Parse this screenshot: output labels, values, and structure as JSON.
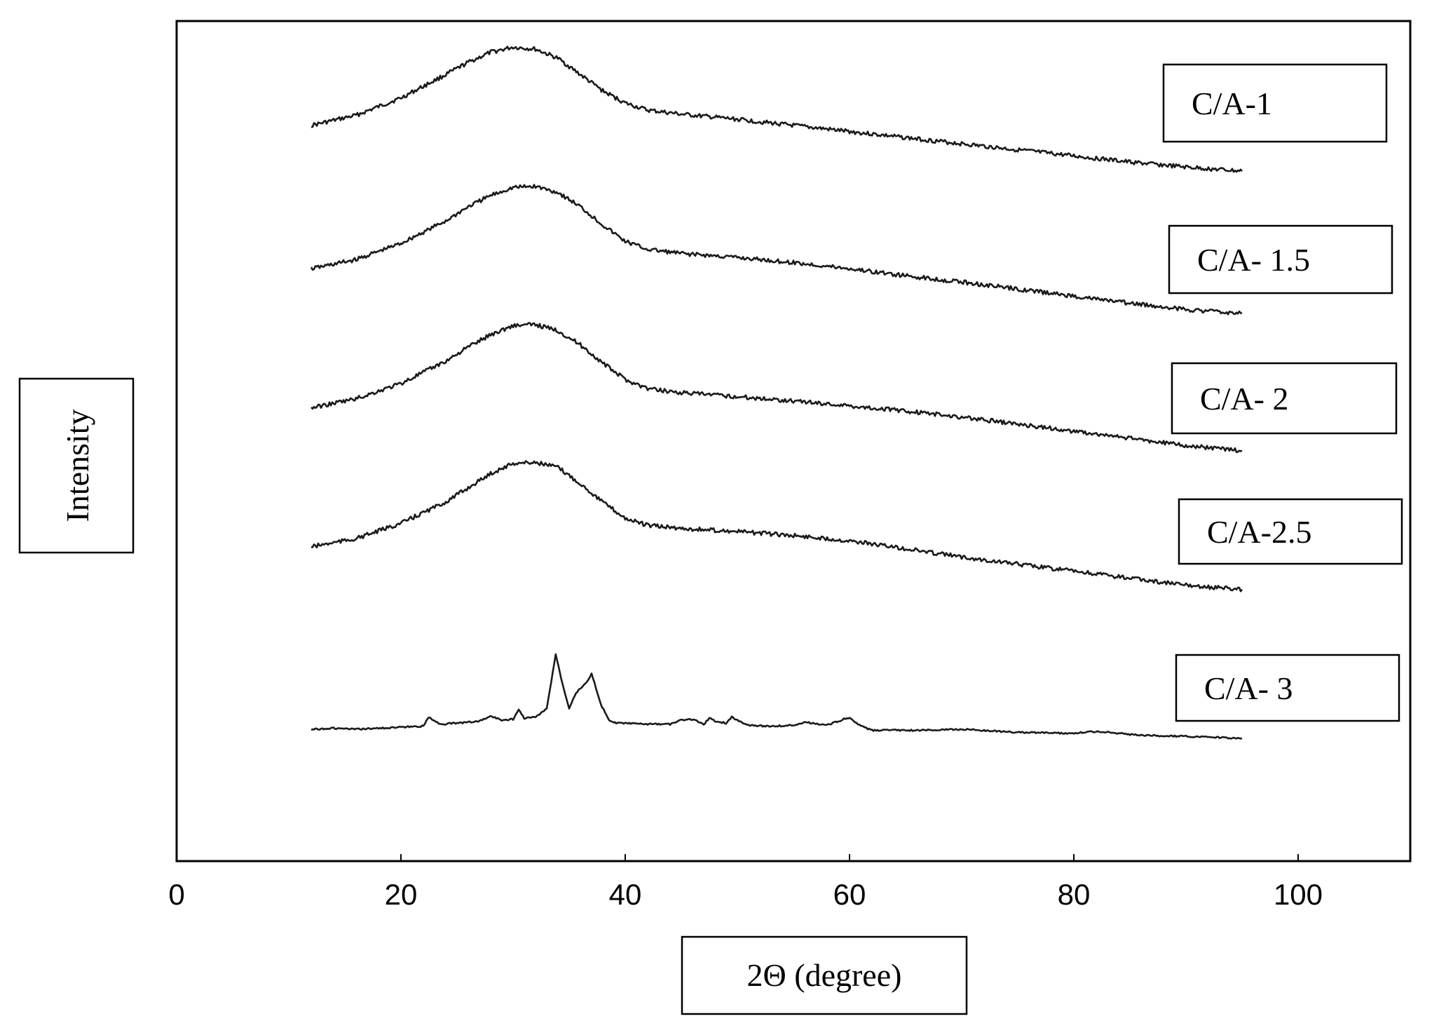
{
  "chart_data": {
    "type": "line",
    "title": "",
    "xlabel": "2Θ (degree)",
    "ylabel": "Intensity",
    "xlim": [
      0,
      110
    ],
    "xticks": [
      0,
      20,
      40,
      60,
      80,
      100
    ],
    "xtick_labels": [
      "0",
      "20",
      "40",
      "60",
      "80",
      "100"
    ],
    "y_ticks_shown": false,
    "grid": false,
    "legend": "right",
    "series": [
      {
        "name": "C/A-1",
        "x": [
          12,
          16,
          20,
          24,
          26,
          28,
          30,
          32,
          34,
          36,
          38,
          40,
          42,
          45,
          50,
          55,
          60,
          65,
          70,
          75,
          80,
          85,
          90,
          95
        ],
        "y": [
          0.18,
          0.28,
          0.45,
          0.68,
          0.8,
          0.9,
          0.95,
          0.93,
          0.84,
          0.68,
          0.52,
          0.4,
          0.33,
          0.29,
          0.24,
          0.18,
          0.12,
          0.06,
          0.0,
          -0.06,
          -0.12,
          -0.18,
          -0.23,
          -0.27
        ]
      },
      {
        "name": "C/A- 1.5",
        "x": [
          12,
          16,
          20,
          24,
          26,
          28,
          30,
          32,
          34,
          36,
          38,
          40,
          42,
          45,
          50,
          55,
          60,
          65,
          70,
          75,
          80,
          85,
          90,
          95
        ],
        "y": [
          0.15,
          0.24,
          0.4,
          0.62,
          0.76,
          0.87,
          0.95,
          0.96,
          0.9,
          0.76,
          0.58,
          0.42,
          0.34,
          0.3,
          0.26,
          0.21,
          0.15,
          0.08,
          0.02,
          -0.05,
          -0.12,
          -0.19,
          -0.25,
          -0.29
        ]
      },
      {
        "name": "C/A- 2",
        "x": [
          12,
          16,
          20,
          24,
          26,
          28,
          30,
          32,
          34,
          36,
          38,
          40,
          42,
          45,
          50,
          55,
          60,
          65,
          70,
          75,
          80,
          85,
          90,
          95
        ],
        "y": [
          0.14,
          0.23,
          0.38,
          0.6,
          0.74,
          0.86,
          0.95,
          0.96,
          0.9,
          0.76,
          0.58,
          0.42,
          0.33,
          0.29,
          0.25,
          0.21,
          0.16,
          0.11,
          0.05,
          -0.02,
          -0.09,
          -0.16,
          -0.23,
          -0.28
        ]
      },
      {
        "name": "C/A-2.5",
        "x": [
          12,
          16,
          20,
          24,
          26,
          28,
          30,
          32,
          34,
          36,
          38,
          40,
          42,
          45,
          50,
          55,
          60,
          65,
          70,
          75,
          80,
          85,
          90,
          95
        ],
        "y": [
          0.14,
          0.22,
          0.37,
          0.58,
          0.72,
          0.86,
          0.96,
          0.97,
          0.92,
          0.76,
          0.58,
          0.42,
          0.35,
          0.32,
          0.29,
          0.25,
          0.2,
          0.12,
          0.04,
          -0.03,
          -0.1,
          -0.17,
          -0.24,
          -0.28
        ]
      },
      {
        "name": "C/A- 3",
        "x": [
          12,
          14,
          16,
          18,
          20,
          22,
          22.5,
          23.5,
          25,
          27,
          28,
          29,
          30,
          30.5,
          31,
          32,
          33,
          33.8,
          34.4,
          35,
          35.6,
          36,
          36.5,
          37,
          37.8,
          38.6,
          39.2,
          40,
          42,
          44,
          45,
          46,
          47,
          47.5,
          48,
          49,
          49.5,
          50,
          51,
          53,
          55,
          56,
          58,
          59.5,
          60,
          61,
          62,
          66,
          70,
          75,
          80,
          82,
          86,
          90,
          95
        ],
        "y": [
          0.0,
          0.01,
          0.0,
          0.01,
          0.02,
          0.03,
          0.12,
          0.05,
          0.06,
          0.08,
          0.13,
          0.09,
          0.1,
          0.19,
          0.11,
          0.12,
          0.2,
          0.74,
          0.45,
          0.21,
          0.36,
          0.4,
          0.45,
          0.55,
          0.25,
          0.08,
          0.06,
          0.06,
          0.05,
          0.05,
          0.09,
          0.1,
          0.05,
          0.11,
          0.08,
          0.06,
          0.12,
          0.09,
          0.04,
          0.03,
          0.04,
          0.07,
          0.04,
          0.1,
          0.11,
          0.03,
          -0.01,
          -0.01,
          0.0,
          -0.03,
          -0.04,
          -0.02,
          -0.06,
          -0.07,
          -0.09
        ]
      }
    ]
  }
}
